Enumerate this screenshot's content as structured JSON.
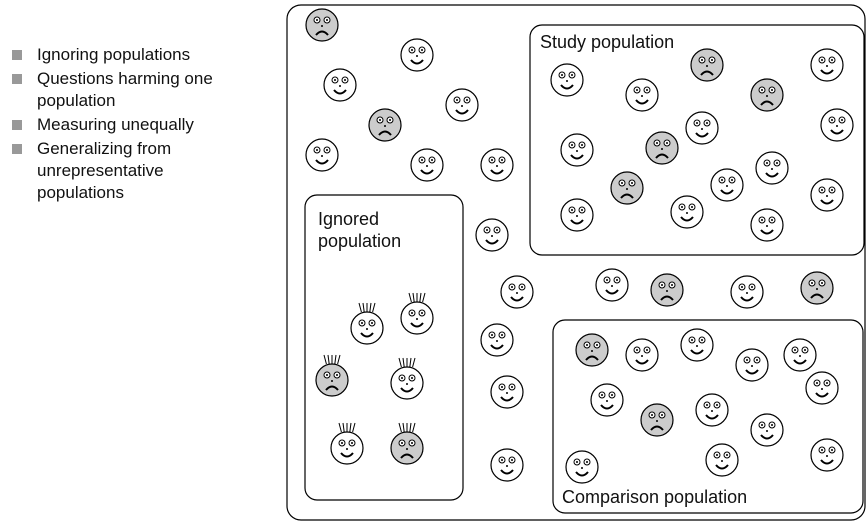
{
  "bullets": [
    "Ignoring populations",
    "Questions harming one population",
    "Measuring unequally",
    "Generalizing from unrepresentative populations"
  ],
  "boxes": {
    "study": "Study population",
    "ignored": "Ignored population",
    "comparison": "Comparison population"
  }
}
